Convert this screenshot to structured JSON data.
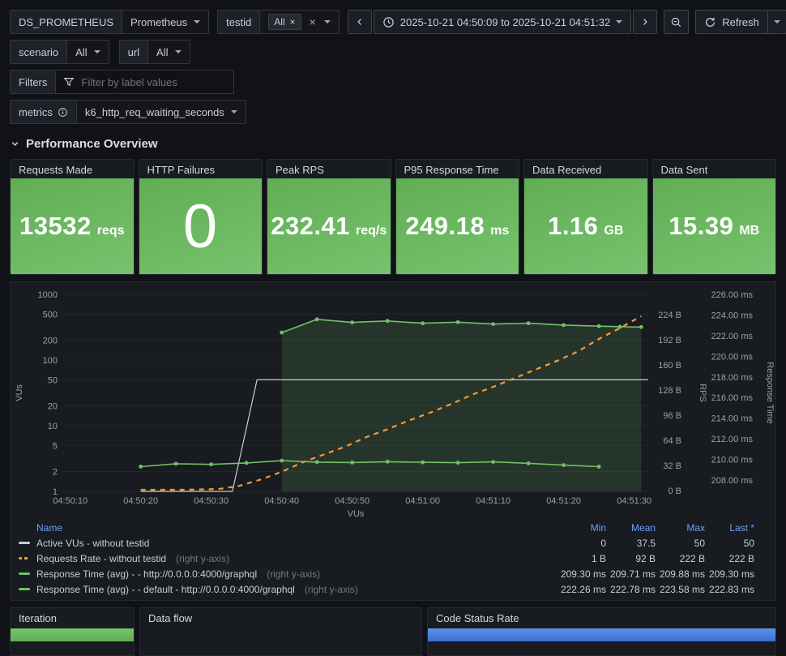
{
  "colors": {
    "background": "#111217",
    "panel": "#181b1f",
    "stat_green": "#73bf69",
    "orange": "#ff9830",
    "blue_bar": "#3d7bd9",
    "legend_header_blue": "#6e9fff"
  },
  "topbar": {
    "datasource": {
      "label": "DS_PROMETHEUS",
      "value": "Prometheus"
    },
    "testid": {
      "label": "testid",
      "chip": "All",
      "chip_remove": "×",
      "clear": "×"
    },
    "time_range": "2025-10-21 04:50:09 to 2025-10-21 04:51:32",
    "refresh_label": "Refresh"
  },
  "variables": {
    "scenario": {
      "label": "scenario",
      "value": "All"
    },
    "url": {
      "label": "url",
      "value": "All"
    },
    "filters": {
      "label": "Filters",
      "placeholder": "Filter by label values"
    },
    "metrics": {
      "label": "metrics",
      "value": "k6_http_req_waiting_seconds"
    }
  },
  "section": {
    "title": "Performance Overview"
  },
  "stats": [
    {
      "title": "Requests Made",
      "value": "13532",
      "unit": "reqs"
    },
    {
      "title": "HTTP Failures",
      "value": "0",
      "unit": ""
    },
    {
      "title": "Peak RPS",
      "value": "232.41",
      "unit": "req/s"
    },
    {
      "title": "P95 Response Time",
      "value": "249.18",
      "unit": "ms"
    },
    {
      "title": "Data Received",
      "value": "1.16",
      "unit": "GB"
    },
    {
      "title": "Data Sent",
      "value": "15.39",
      "unit": "MB"
    }
  ],
  "chart_data": {
    "type": "line",
    "time_domain": [
      9,
      92
    ],
    "x_axis_label": "VUs",
    "x_ticks": [
      {
        "t": 10,
        "label": "04:50:10"
      },
      {
        "t": 20,
        "label": "04:50:20"
      },
      {
        "t": 30,
        "label": "04:50:30"
      },
      {
        "t": 40,
        "label": "04:50:40"
      },
      {
        "t": 50,
        "label": "04:50:50"
      },
      {
        "t": 60,
        "label": "04:51:00"
      },
      {
        "t": 70,
        "label": "04:51:10"
      },
      {
        "t": 80,
        "label": "04:51:20"
      },
      {
        "t": 90,
        "label": "04:51:30"
      }
    ],
    "axes": {
      "left": {
        "label": "VUs",
        "scale": "log",
        "min": 1,
        "max": 1000,
        "ticks": [
          {
            "v": 1,
            "label": "1"
          },
          {
            "v": 2,
            "label": "2"
          },
          {
            "v": 5,
            "label": "5"
          },
          {
            "v": 10,
            "label": "10"
          },
          {
            "v": 20,
            "label": "20"
          },
          {
            "v": 50,
            "label": "50"
          },
          {
            "v": 100,
            "label": "100"
          },
          {
            "v": 200,
            "label": "200"
          },
          {
            "v": 500,
            "label": "500"
          },
          {
            "v": 1000,
            "label": "1000"
          }
        ]
      },
      "rps": {
        "label": "RPS",
        "scale": "linear",
        "min": 0,
        "max": 224,
        "ticks": [
          {
            "v": 0,
            "label": "0 B"
          },
          {
            "v": 32,
            "label": "32 B"
          },
          {
            "v": 64,
            "label": "64 B"
          },
          {
            "v": 96,
            "label": "96 B"
          },
          {
            "v": 128,
            "label": "128 B"
          },
          {
            "v": 160,
            "label": "160 B"
          },
          {
            "v": 192,
            "label": "192 B"
          },
          {
            "v": 224,
            "label": "224 B"
          }
        ]
      },
      "rt": {
        "label": "Response Time",
        "scale": "linear",
        "min": 208,
        "max": 226,
        "ticks": [
          {
            "v": 208,
            "label": "208.00 ms"
          },
          {
            "v": 210,
            "label": "210.00 ms"
          },
          {
            "v": 212,
            "label": "212.00 ms"
          },
          {
            "v": 214,
            "label": "214.00 ms"
          },
          {
            "v": 216,
            "label": "216.00 ms"
          },
          {
            "v": 218,
            "label": "218.00 ms"
          },
          {
            "v": 220,
            "label": "220.00 ms"
          },
          {
            "v": 222,
            "label": "222.00 ms"
          },
          {
            "v": 224,
            "label": "224.00 ms"
          },
          {
            "v": 226,
            "label": "226.00 ms"
          }
        ]
      }
    },
    "series": [
      {
        "name": "Active VUs - without testid",
        "color": "#ccccdc",
        "axis": "left",
        "width": 1.2,
        "points": [
          [
            20,
            1
          ],
          [
            33,
            1
          ],
          [
            36.5,
            50
          ],
          [
            92,
            50
          ]
        ]
      },
      {
        "name": "Requests Rate - without testid",
        "color": "#ff9830",
        "axis": "rps",
        "width": 2.2,
        "dash": "6 6",
        "points": [
          [
            20,
            1
          ],
          [
            26,
            1
          ],
          [
            31,
            2
          ],
          [
            34,
            6
          ],
          [
            37,
            14
          ],
          [
            40,
            24
          ],
          [
            43,
            36
          ],
          [
            46,
            46
          ],
          [
            49,
            56
          ],
          [
            52,
            68
          ],
          [
            55,
            78
          ],
          [
            58,
            89
          ],
          [
            61,
            99
          ],
          [
            64,
            110
          ],
          [
            67,
            122
          ],
          [
            70,
            132
          ],
          [
            73,
            143
          ],
          [
            76,
            154
          ],
          [
            79,
            165
          ],
          [
            82,
            177
          ],
          [
            85,
            193
          ],
          [
            88,
            207
          ],
          [
            91,
            222
          ]
        ]
      },
      {
        "name": "Response Time (avg) - - http://0.0.0.0:4000/graphql",
        "color": "#73bf69",
        "axis": "rt",
        "width": 1.6,
        "markers": true,
        "points": [
          [
            20,
            209.3
          ],
          [
            25,
            209.58
          ],
          [
            30,
            209.52
          ],
          [
            35,
            209.66
          ],
          [
            40,
            209.88
          ],
          [
            45,
            209.74
          ],
          [
            50,
            209.7
          ],
          [
            55,
            209.78
          ],
          [
            60,
            209.72
          ],
          [
            65,
            209.68
          ],
          [
            70,
            209.76
          ],
          [
            75,
            209.62
          ],
          [
            80,
            209.45
          ],
          [
            85,
            209.3
          ]
        ]
      },
      {
        "name": "Response Time (avg) - - default - http://0.0.0.0:4000/graphql",
        "color": "#73bf69",
        "axis": "rt",
        "width": 1.6,
        "markers": true,
        "fill": true,
        "points": [
          [
            40,
            222.3
          ],
          [
            45,
            223.58
          ],
          [
            50,
            223.28
          ],
          [
            55,
            223.42
          ],
          [
            60,
            223.2
          ],
          [
            65,
            223.3
          ],
          [
            70,
            223.12
          ],
          [
            75,
            223.2
          ],
          [
            80,
            223.02
          ],
          [
            85,
            222.92
          ],
          [
            88,
            222.86
          ],
          [
            91,
            222.83
          ]
        ]
      }
    ]
  },
  "legend": {
    "headers": [
      "Name",
      "Min",
      "Mean",
      "Max",
      "Last *"
    ],
    "rows": [
      {
        "name": "Active VUs - without testid",
        "suffix": "",
        "min": "0",
        "mean": "37.5",
        "max": "50",
        "last": "50"
      },
      {
        "name": "Requests Rate - without testid",
        "suffix": "(right y-axis)",
        "min": "1 B",
        "mean": "92 B",
        "max": "222 B",
        "last": "222 B"
      },
      {
        "name": "Response Time (avg) - - http://0.0.0.0:4000/graphql",
        "suffix": "(right y-axis)",
        "min": "209.30 ms",
        "mean": "209.71 ms",
        "max": "209.88 ms",
        "last": "209.30 ms"
      },
      {
        "name": "Response Time (avg) - - default - http://0.0.0.0:4000/graphql",
        "suffix": "(right y-axis)",
        "min": "222.26 ms",
        "mean": "222.78 ms",
        "max": "223.58 ms",
        "last": "222.83 ms"
      }
    ]
  },
  "bottom_panels": [
    {
      "title": "Iteration"
    },
    {
      "title": "Data flow"
    },
    {
      "title": "Code Status Rate"
    }
  ]
}
